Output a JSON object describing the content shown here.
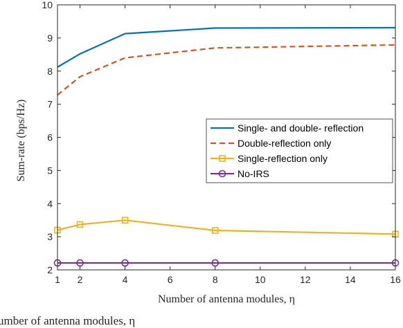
{
  "chart_data": {
    "type": "line",
    "xlabel": "Number of antenna modules, η",
    "ylabel": "Sum-rate (bps/Hz)",
    "xlim": [
      1,
      16
    ],
    "ylim": [
      2,
      10
    ],
    "xticks": [
      1,
      2,
      4,
      6,
      8,
      10,
      12,
      14,
      16
    ],
    "yticks": [
      2,
      3,
      4,
      5,
      6,
      7,
      8,
      9,
      10
    ],
    "grid": false,
    "legend_position": "center-right",
    "series": [
      {
        "name": "Single- and double- reflection",
        "color": "#0072BD",
        "style": "solid",
        "marker": "none",
        "x": [
          1,
          2,
          4,
          8,
          16
        ],
        "y": [
          8.12,
          8.52,
          9.13,
          9.3,
          9.31
        ]
      },
      {
        "name": "Double-reflection only",
        "color": "#D95319",
        "style": "dashed",
        "marker": "none",
        "x": [
          1,
          2,
          4,
          8,
          16
        ],
        "y": [
          7.28,
          7.83,
          8.4,
          8.7,
          8.79
        ]
      },
      {
        "name": "Single-reflection only",
        "color": "#EDB120",
        "style": "solid",
        "marker": "square",
        "x": [
          1,
          2,
          4,
          8,
          16
        ],
        "y": [
          3.2,
          3.37,
          3.5,
          3.19,
          3.08
        ]
      },
      {
        "name": "No-IRS",
        "color": "#7E2F8E",
        "style": "solid",
        "marker": "circle",
        "x": [
          1,
          2,
          4,
          8,
          16
        ],
        "y": [
          2.21,
          2.21,
          2.21,
          2.21,
          2.21
        ]
      }
    ]
  },
  "caption_fragment": "umber of antenna modules, η"
}
